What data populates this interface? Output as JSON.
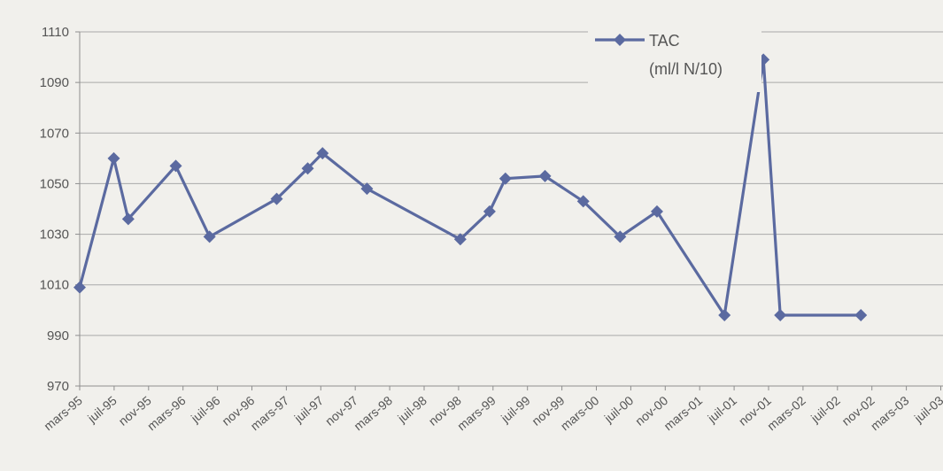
{
  "chart_data": {
    "type": "line",
    "title": "",
    "xlabel": "",
    "ylabel": "",
    "ylim": [
      970,
      1110
    ],
    "yticks": [
      970,
      990,
      1010,
      1030,
      1050,
      1070,
      1090,
      1110
    ],
    "grid": true,
    "legend_position": "top-right",
    "colors": {
      "series": "#5b6aa0",
      "grid": "#a9a9a9",
      "axis": "#8e8e8e",
      "text": "#555555",
      "background": "#f1f0ec"
    },
    "categories": [
      "mars-95",
      "juil-95",
      "nov-95",
      "mars-96",
      "juil-96",
      "nov-96",
      "mars-97",
      "juil-97",
      "nov-97",
      "mars-98",
      "juil-98",
      "nov-98",
      "mars-99",
      "juil-99",
      "nov-99",
      "mars-00",
      "juil-00",
      "nov-00",
      "mars-01",
      "juil-01",
      "nov-01",
      "mars-02",
      "juil-02",
      "nov-02",
      "mars-03",
      "juil-03"
    ],
    "series": [
      {
        "name": "TAC",
        "name_line2": "(ml/l N/10)",
        "points": [
          [
            0.0,
            1009
          ],
          [
            0.99,
            1060
          ],
          [
            1.41,
            1036
          ],
          [
            2.79,
            1057
          ],
          [
            3.77,
            1029
          ],
          [
            5.72,
            1044
          ],
          [
            6.62,
            1056
          ],
          [
            7.05,
            1062
          ],
          [
            8.34,
            1048
          ],
          [
            11.05,
            1028
          ],
          [
            11.9,
            1039
          ],
          [
            12.36,
            1052
          ],
          [
            13.51,
            1053
          ],
          [
            14.62,
            1043
          ],
          [
            15.69,
            1029
          ],
          [
            16.76,
            1039
          ],
          [
            18.72,
            998
          ],
          [
            19.85,
            1099
          ],
          [
            20.34,
            998
          ],
          [
            22.68,
            998
          ]
        ]
      }
    ]
  }
}
